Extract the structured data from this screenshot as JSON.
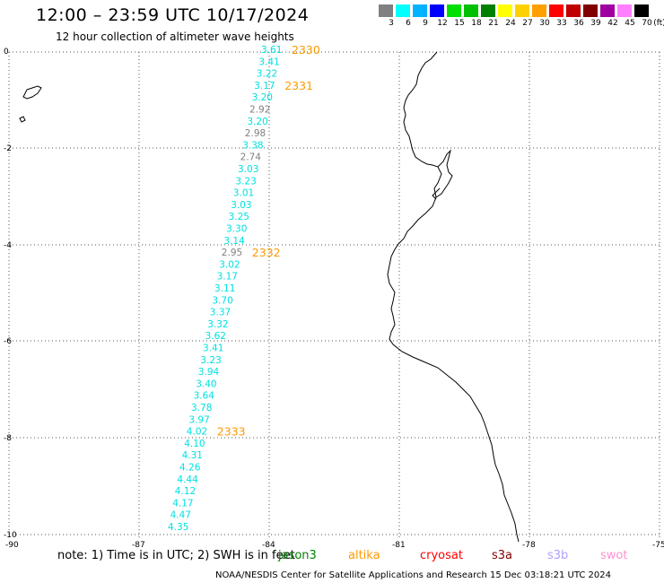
{
  "header": {
    "title": "12:00 – 23:59 UTC 10/17/2024",
    "subtitle": "12 hour collection of altimeter wave heights"
  },
  "legend": {
    "colors": [
      "#808080",
      "#00ffff",
      "#00b2ff",
      "#0000ff",
      "#00e000",
      "#00c000",
      "#008000",
      "#ffff00",
      "#ffd000",
      "#ffa000",
      "#ff0000",
      "#c00000",
      "#800000",
      "#a000a0",
      "#ff80ff",
      "#000000"
    ],
    "labels": [
      "3",
      "6",
      "9",
      "12",
      "15",
      "18",
      "21",
      "24",
      "27",
      "30",
      "33",
      "36",
      "39",
      "42",
      "45",
      "70",
      "(ft)"
    ]
  },
  "map": {
    "x_ticks": [
      "-90",
      "-87",
      "-84",
      "-81",
      "-78",
      "-75"
    ],
    "y_ticks": [
      "0",
      "-2",
      "-4",
      "-6",
      "-8",
      "-10"
    ],
    "track_labels": [
      "2330",
      "2331",
      "2332",
      "2333"
    ],
    "track_color": "#ff9900",
    "swh_points": [
      {
        "v": "3.61",
        "c": "#00e0e0"
      },
      {
        "v": "3.41",
        "c": "#00e0e0"
      },
      {
        "v": "3.22",
        "c": "#00e0e0"
      },
      {
        "v": "3.17",
        "c": "#00e0e0"
      },
      {
        "v": "3.20",
        "c": "#00e0e0"
      },
      {
        "v": "2.92",
        "c": "#808080"
      },
      {
        "v": "3.20",
        "c": "#00e0e0"
      },
      {
        "v": "2.98",
        "c": "#808080"
      },
      {
        "v": "3.38",
        "c": "#00e0e0"
      },
      {
        "v": "2.74",
        "c": "#808080"
      },
      {
        "v": "3.03",
        "c": "#00e0e0"
      },
      {
        "v": "3.23",
        "c": "#00e0e0"
      },
      {
        "v": "3.01",
        "c": "#00e0e0"
      },
      {
        "v": "3.03",
        "c": "#00e0e0"
      },
      {
        "v": "3.25",
        "c": "#00e0e0"
      },
      {
        "v": "3.30",
        "c": "#00e0e0"
      },
      {
        "v": "3.14",
        "c": "#00e0e0"
      },
      {
        "v": "2.95",
        "c": "#808080"
      },
      {
        "v": "3.02",
        "c": "#00e0e0"
      },
      {
        "v": "3.17",
        "c": "#00e0e0"
      },
      {
        "v": "3.11",
        "c": "#00e0e0"
      },
      {
        "v": "3.70",
        "c": "#00e0e0"
      },
      {
        "v": "3.37",
        "c": "#00e0e0"
      },
      {
        "v": "3.32",
        "c": "#00e0e0"
      },
      {
        "v": "3.62",
        "c": "#00e0e0"
      },
      {
        "v": "3.41",
        "c": "#00e0e0"
      },
      {
        "v": "3.23",
        "c": "#00e0e0"
      },
      {
        "v": "3.94",
        "c": "#00e0e0"
      },
      {
        "v": "3.40",
        "c": "#00e0e0"
      },
      {
        "v": "3.64",
        "c": "#00e0e0"
      },
      {
        "v": "3.78",
        "c": "#00e0e0"
      },
      {
        "v": "3.97",
        "c": "#00e0e0"
      },
      {
        "v": "4.02",
        "c": "#00e0e0"
      },
      {
        "v": "4.10",
        "c": "#00e0e0"
      },
      {
        "v": "4.31",
        "c": "#00e0e0"
      },
      {
        "v": "4.26",
        "c": "#00e0e0"
      },
      {
        "v": "4.44",
        "c": "#00e0e0"
      },
      {
        "v": "4.12",
        "c": "#00e0e0"
      },
      {
        "v": "4.17",
        "c": "#00e0e0"
      },
      {
        "v": "4.47",
        "c": "#00e0e0"
      },
      {
        "v": "4.35",
        "c": "#00e0e0"
      }
    ]
  },
  "footer": {
    "note": "note:  1) Time is in UTC;  2) SWH is in feet",
    "satellites": [
      {
        "name": "jason3",
        "color": "#008000"
      },
      {
        "name": "altika",
        "color": "#ff9900"
      },
      {
        "name": "cryosat",
        "color": "#ff0000"
      },
      {
        "name": "s3a",
        "color": "#800000"
      },
      {
        "name": "s3b",
        "color": "#b0a0ff"
      },
      {
        "name": "swot",
        "color": "#ff90d0"
      }
    ],
    "credit": "NOAA/NESDIS Center for Satellite Applications and Research     15 Dec 03:18:21 UTC 2024"
  }
}
